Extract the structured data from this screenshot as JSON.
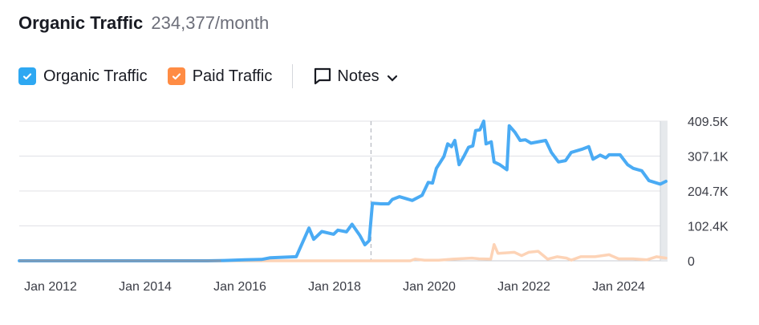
{
  "header": {
    "title": "Organic Traffic",
    "value": "234,377/month"
  },
  "legend": {
    "organic_label": "Organic Traffic",
    "paid_label": "Paid Traffic",
    "notes_label": "Notes",
    "organic_checked": true,
    "paid_checked": true
  },
  "colors": {
    "organic": "#4aabf4",
    "paid": "#fdd3b6",
    "organic_checkbox": "#2ea8f2",
    "paid_checkbox": "#ff8c44",
    "grid": "#e0e1e6"
  },
  "icons": {
    "check": "check-icon",
    "notes": "comment-icon",
    "chevron": "chevron-down-icon"
  },
  "chart_data": {
    "type": "line",
    "xlabel": "",
    "ylabel": "",
    "x_ticks": [
      "Jan 2012",
      "Jan 2014",
      "Jan 2016",
      "Jan 2018",
      "Jan 2020",
      "Jan 2022",
      "Jan 2024"
    ],
    "y_ticks": [
      "409.5K",
      "307.1K",
      "204.7K",
      "102.4K",
      "0"
    ],
    "ylim": [
      0,
      409500
    ],
    "xlim": [
      "2011-05",
      "2025-01"
    ],
    "grid": true,
    "y_axis_position": "right",
    "series": [
      {
        "name": "Organic Traffic",
        "points": [
          [
            2011.34,
            0
          ],
          [
            2015.3,
            0
          ],
          [
            2015.68,
            1000
          ],
          [
            2016.1,
            3000
          ],
          [
            2016.46,
            4000
          ],
          [
            2016.64,
            9000
          ],
          [
            2017.19,
            12000
          ],
          [
            2017.29,
            43000
          ],
          [
            2017.46,
            96000
          ],
          [
            2017.56,
            63000
          ],
          [
            2017.73,
            86000
          ],
          [
            2017.98,
            78000
          ],
          [
            2018.07,
            90000
          ],
          [
            2018.25,
            85000
          ],
          [
            2018.37,
            107000
          ],
          [
            2018.53,
            75000
          ],
          [
            2018.64,
            47000
          ],
          [
            2018.73,
            59000
          ],
          [
            2018.8,
            169000
          ],
          [
            2018.98,
            167000
          ],
          [
            2019.14,
            167000
          ],
          [
            2019.22,
            180000
          ],
          [
            2019.37,
            188000
          ],
          [
            2019.64,
            177000
          ],
          [
            2019.85,
            192000
          ],
          [
            2019.98,
            230000
          ],
          [
            2020.07,
            228000
          ],
          [
            2020.15,
            271000
          ],
          [
            2020.31,
            306000
          ],
          [
            2020.39,
            343000
          ],
          [
            2020.47,
            335000
          ],
          [
            2020.54,
            353000
          ],
          [
            2020.63,
            282000
          ],
          [
            2020.73,
            306000
          ],
          [
            2020.83,
            333000
          ],
          [
            2020.92,
            337000
          ],
          [
            2020.98,
            382000
          ],
          [
            2021.07,
            384000
          ],
          [
            2021.15,
            409500
          ],
          [
            2021.2,
            343000
          ],
          [
            2021.31,
            349000
          ],
          [
            2021.37,
            290000
          ],
          [
            2021.49,
            282000
          ],
          [
            2021.64,
            267000
          ],
          [
            2021.69,
            396000
          ],
          [
            2021.81,
            377000
          ],
          [
            2021.92,
            353000
          ],
          [
            2022.03,
            355000
          ],
          [
            2022.15,
            345000
          ],
          [
            2022.46,
            353000
          ],
          [
            2022.58,
            318000
          ],
          [
            2022.73,
            290000
          ],
          [
            2022.88,
            294000
          ],
          [
            2023.0,
            318000
          ],
          [
            2023.22,
            327000
          ],
          [
            2023.37,
            335000
          ],
          [
            2023.46,
            298000
          ],
          [
            2023.61,
            310000
          ],
          [
            2023.73,
            302000
          ],
          [
            2023.8,
            311000
          ],
          [
            2024.03,
            311000
          ],
          [
            2024.19,
            282000
          ],
          [
            2024.31,
            271000
          ],
          [
            2024.49,
            264000
          ],
          [
            2024.64,
            235000
          ],
          [
            2024.88,
            225000
          ],
          [
            2025.0,
            233000
          ]
        ]
      },
      {
        "name": "Paid Traffic",
        "points": [
          [
            2011.34,
            0
          ],
          [
            2019.6,
            0
          ],
          [
            2019.7,
            5000
          ],
          [
            2019.9,
            2000
          ],
          [
            2020.2,
            2000
          ],
          [
            2020.5,
            5000
          ],
          [
            2020.9,
            8000
          ],
          [
            2021.05,
            6000
          ],
          [
            2021.3,
            5000
          ],
          [
            2021.37,
            48000
          ],
          [
            2021.45,
            22000
          ],
          [
            2021.8,
            25000
          ],
          [
            2021.95,
            15000
          ],
          [
            2022.1,
            25000
          ],
          [
            2022.3,
            28000
          ],
          [
            2022.5,
            5000
          ],
          [
            2022.7,
            12000
          ],
          [
            2022.9,
            8000
          ],
          [
            2023.0,
            2000
          ],
          [
            2023.2,
            12000
          ],
          [
            2023.5,
            12000
          ],
          [
            2023.8,
            18000
          ],
          [
            2024.0,
            6000
          ],
          [
            2024.3,
            6000
          ],
          [
            2024.6,
            3000
          ],
          [
            2024.8,
            12000
          ],
          [
            2025.0,
            8000
          ]
        ]
      }
    ],
    "annotations": [
      {
        "type": "dashed-vertical-marker",
        "x": 2018.77
      }
    ]
  }
}
